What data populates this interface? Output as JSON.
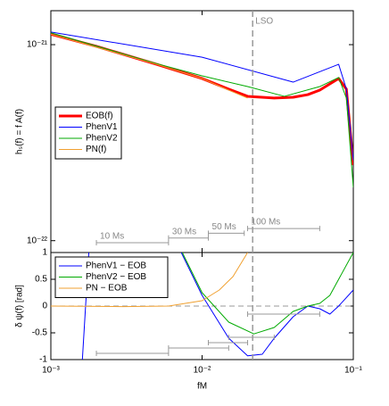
{
  "chart_data": [
    {
      "type": "line",
      "log_x": true,
      "log_y": true,
      "y_label": "hₛ(f) = f A(f)",
      "xlim": [
        0.001,
        0.1
      ],
      "ylim": [
        8.7e-23,
        1.49e-21
      ],
      "yticks": [
        {
          "value": 1e-22,
          "label": "10⁻²²"
        },
        {
          "value": 1e-21,
          "label": "10⁻²¹"
        }
      ],
      "legend": "center left",
      "series": [
        {
          "name": "EOB(f)",
          "color": "#ff0000",
          "linewidth": 3,
          "x": [
            0.001,
            0.002,
            0.005,
            0.01,
            0.015,
            0.02,
            0.03,
            0.04,
            0.05,
            0.06,
            0.07,
            0.08,
            0.09,
            0.1
          ],
          "values": [
            1.13e-21,
            9.8e-22,
            7.94e-22,
            6.72e-22,
            5.93e-22,
            5.45e-22,
            5.34e-22,
            5.39e-22,
            5.56e-22,
            5.86e-22,
            6.31e-22,
            6.72e-22,
            5.93e-22,
            2.43e-22
          ]
        },
        {
          "name": "PhenV1",
          "color": "#0000ff",
          "linewidth": 1,
          "x": [
            0.001,
            0.01,
            0.04,
            0.08,
            0.09,
            0.1
          ],
          "values": [
            1.16e-21,
            8.63e-22,
            6.44e-22,
            7.94e-22,
            5.93e-22,
            2.57e-22
          ]
        },
        {
          "name": "PhenV2",
          "color": "#00aa00",
          "linewidth": 1,
          "x": [
            0.001,
            0.005,
            0.01,
            0.02,
            0.035,
            0.06,
            0.08,
            0.09,
            0.1
          ],
          "values": [
            1.15e-21,
            8e-22,
            6.93e-22,
            6.11e-22,
            5.45e-22,
            6.11e-22,
            6.8e-22,
            5.34e-22,
            1.87e-22
          ]
        },
        {
          "name": "PN(f)",
          "color": "#f0a030",
          "linewidth": 1,
          "x": [
            0.001,
            0.005,
            0.01,
            0.015,
            0.02
          ],
          "values": [
            1.13e-21,
            7.94e-22,
            6.72e-22,
            5.86e-22,
            5.34e-22
          ]
        }
      ],
      "vline": {
        "x": 0.0216,
        "label": "LSO"
      },
      "windows": [
        {
          "label": "10 Ms",
          "range": [
            0.002,
            0.006
          ]
        },
        {
          "label": "30 Ms",
          "range": [
            0.006,
            0.011
          ]
        },
        {
          "label": "50 Ms",
          "range": [
            0.011,
            0.019
          ]
        },
        {
          "label": "100 Ms",
          "range": [
            0.02,
            0.06
          ]
        }
      ]
    },
    {
      "type": "line",
      "log_x": true,
      "log_y": false,
      "x_label": "fM",
      "y_label": "δ ψ(f)  [rad]",
      "xlim": [
        0.001,
        0.1
      ],
      "ylim": [
        -1,
        1
      ],
      "xticks": [
        {
          "value": 0.001,
          "label": "10⁻³"
        },
        {
          "value": 0.01,
          "label": "10⁻²"
        },
        {
          "value": 0.1,
          "label": "10⁻¹"
        }
      ],
      "yticks": [
        -1,
        -0.5,
        0,
        0.5,
        1
      ],
      "legend": "upper left",
      "hline": 0,
      "series": [
        {
          "name": "PhenV1 − EOB",
          "color": "#0000ff",
          "linewidth": 1,
          "x": [
            0.0016,
            0.0018,
            0.003,
            0.007,
            0.01,
            0.015,
            0.02,
            0.025,
            0.03,
            0.04,
            0.05,
            0.06,
            0.07,
            0.08,
            0.1
          ],
          "values": [
            -1.2,
            1.2,
            null,
            1.1,
            0.2,
            -0.6,
            -0.93,
            -0.9,
            -0.6,
            -0.2,
            0,
            -0.05,
            -0.15,
            0,
            0.3
          ]
        },
        {
          "name": "PhenV2 − EOB",
          "color": "#00aa00",
          "linewidth": 1,
          "x": [
            0.0074,
            0.01,
            0.015,
            0.022,
            0.03,
            0.04,
            0.05,
            0.06,
            0.07,
            0.08,
            0.1
          ],
          "values": [
            1,
            0.25,
            -0.3,
            -0.52,
            -0.4,
            -0.1,
            0,
            0.05,
            0.2,
            0.5,
            1
          ]
        },
        {
          "name": "PN − EOB",
          "color": "#f0a030",
          "linewidth": 1,
          "x": [
            0.001,
            0.003,
            0.006,
            0.01,
            0.013,
            0.016,
            0.02
          ],
          "values": [
            0,
            -0.01,
            0,
            0.1,
            0.3,
            0.55,
            1
          ]
        }
      ],
      "windows": [
        {
          "range": [
            0.002,
            0.006
          ]
        },
        {
          "range": [
            0.006,
            0.015
          ]
        },
        {
          "range": [
            0.011,
            0.02
          ]
        },
        {
          "range": [
            0.015,
            0.03
          ]
        },
        {
          "range": [
            0.02,
            0.06
          ]
        }
      ]
    }
  ]
}
